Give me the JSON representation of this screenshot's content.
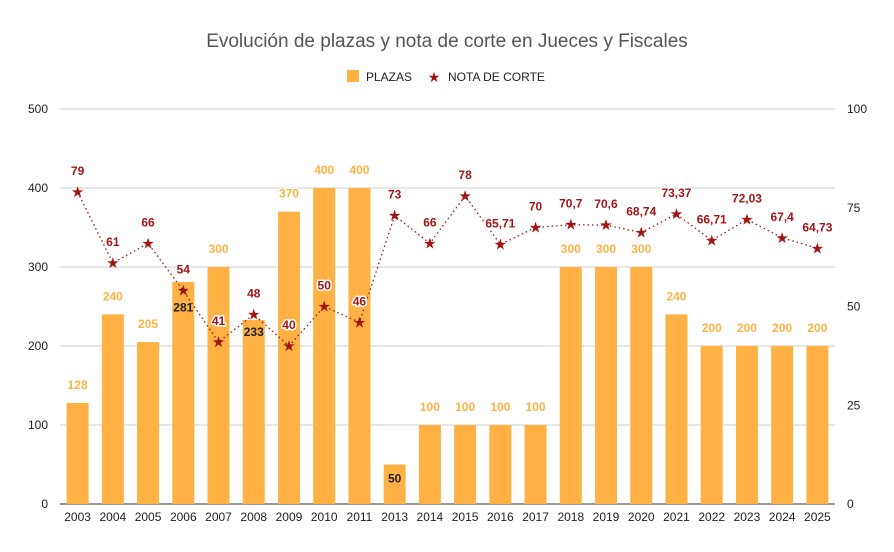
{
  "chart_data": {
    "type": "bar+line",
    "title": "Evolución de plazas y nota de corte en Jueces y Fiscales",
    "categories": [
      "2003",
      "2004",
      "2005",
      "2006",
      "2007",
      "2008",
      "2009",
      "2010",
      "2011",
      "2013",
      "2014",
      "2015",
      "2016",
      "2017",
      "2018",
      "2019",
      "2020",
      "2021",
      "2022",
      "2023",
      "2024",
      "2025"
    ],
    "series": [
      {
        "name": "PLAZAS",
        "type": "bar",
        "axis": "left",
        "color": "#ffb243",
        "label_color": "#ffb243",
        "values": [
          128,
          240,
          205,
          281,
          300,
          233,
          370,
          400,
          400,
          50,
          100,
          100,
          100,
          100,
          300,
          300,
          300,
          240,
          200,
          200,
          200,
          200
        ]
      },
      {
        "name": "NOTA DE CORTE",
        "type": "line",
        "marker": "star",
        "line_style": "dotted",
        "axis": "right",
        "color": "#a31515",
        "values": [
          79,
          61,
          66,
          54,
          41,
          48,
          40,
          50,
          46,
          73,
          66,
          78,
          65.71,
          70,
          70.7,
          70.6,
          68.74,
          73.37,
          66.71,
          72.03,
          67.4,
          64.73
        ],
        "labels": [
          "79",
          "61",
          "66",
          "54",
          "41",
          "48",
          "40",
          "50",
          "46",
          "73",
          "66",
          "78",
          "65,71",
          "70",
          "70,7",
          "70,6",
          "68,74",
          "73,37",
          "66,71",
          "72,03",
          "67,4",
          "64,73"
        ]
      }
    ],
    "left_axis": {
      "range": [
        0,
        500
      ],
      "ticks": [
        "0",
        "100",
        "200",
        "300",
        "400",
        "500"
      ]
    },
    "right_axis": {
      "range": [
        0,
        100
      ],
      "ticks": [
        "0",
        "25",
        "50",
        "75",
        "100"
      ]
    },
    "grid": true,
    "legend": "top"
  }
}
